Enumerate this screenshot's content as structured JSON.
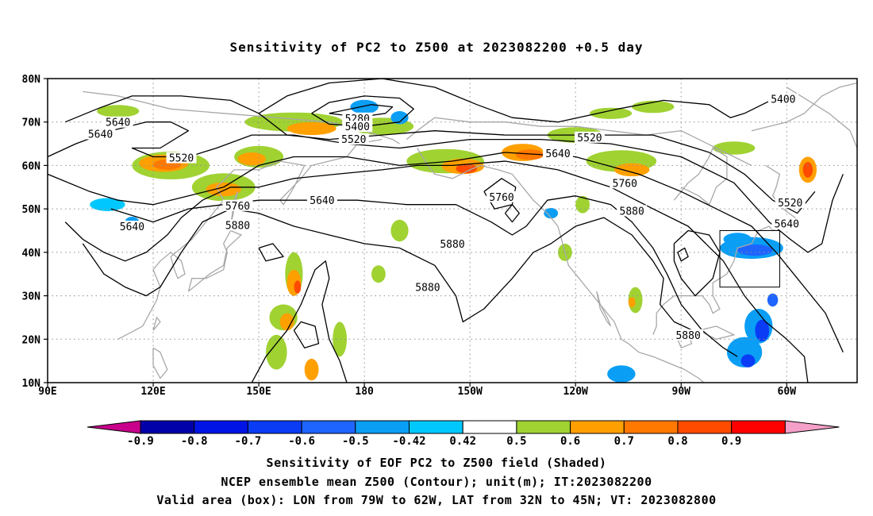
{
  "title": "Sensitivity of PC2 to Z500 at 2023082200 +0.5 day",
  "lat_labels": [
    "80N",
    "70N",
    "60N",
    "50N",
    "40N",
    "30N",
    "20N",
    "10N"
  ],
  "lon_labels": [
    "90E",
    "120E",
    "150E",
    "180",
    "150W",
    "120W",
    "90W",
    "60W"
  ],
  "contour_labels": [
    {
      "text": "5280",
      "lon": 178,
      "lat": 70.9
    },
    {
      "text": "5400",
      "lon": 178,
      "lat": 69.0
    },
    {
      "text": "5400",
      "lon": -61,
      "lat": 75.3
    },
    {
      "text": "5520",
      "lon": 177,
      "lat": 66.1
    },
    {
      "text": "5520",
      "lon": 128,
      "lat": 61.8
    },
    {
      "text": "5520",
      "lon": -116,
      "lat": 66.5
    },
    {
      "text": "5520",
      "lon": -59,
      "lat": 51.5
    },
    {
      "text": "5640",
      "lon": 110,
      "lat": 70.0
    },
    {
      "text": "5640",
      "lon": 105,
      "lat": 67.3
    },
    {
      "text": "5640",
      "lon": 168,
      "lat": 52.0
    },
    {
      "text": "5640",
      "lon": -125,
      "lat": 62.8
    },
    {
      "text": "5640",
      "lon": -60,
      "lat": 46.6
    },
    {
      "text": "5640",
      "lon": 114,
      "lat": 46.0
    },
    {
      "text": "5760",
      "lon": 144,
      "lat": 50.8
    },
    {
      "text": "5760",
      "lon": -141,
      "lat": 52.8
    },
    {
      "text": "5760",
      "lon": -106,
      "lat": 56.0
    },
    {
      "text": "5880",
      "lon": 144,
      "lat": 46.3
    },
    {
      "text": "5880",
      "lon": -155,
      "lat": 42.0
    },
    {
      "text": "5880",
      "lon": -162,
      "lat": 32.0
    },
    {
      "text": "5880",
      "lon": -104,
      "lat": 49.6
    },
    {
      "text": "5880",
      "lon": -88,
      "lat": 21.0
    }
  ],
  "valid_box": {
    "lon_west": -79,
    "lon_east": -62,
    "lat_south": 32,
    "lat_north": 45
  },
  "colorbar": {
    "ticks": [
      "-0.9",
      "-0.8",
      "-0.7",
      "-0.6",
      "-0.5",
      "-0.42",
      "0.42",
      "0.5",
      "0.6",
      "0.7",
      "0.8",
      "0.9"
    ],
    "under_color": "#c8008c",
    "over_color": "#f4a0c8",
    "colors": [
      "#0000a8",
      "#0014e6",
      "#0a3cf5",
      "#1e64ff",
      "#0a9ef5",
      "#00c8ff",
      "#ffffff",
      "#a0d232",
      "#ffa000",
      "#ff7800",
      "#ff4b00",
      "#ff0000"
    ]
  },
  "captions": {
    "line1": "Sensitivity of EOF PC2 to Z500 field (Shaded)",
    "line2": "NCEP ensemble mean Z500 (Contour); unit(m); IT:2023082200",
    "line3": "Valid area (box): LON from 79W to 62W, LAT from 32N to 45N; VT: 2023082800"
  }
}
